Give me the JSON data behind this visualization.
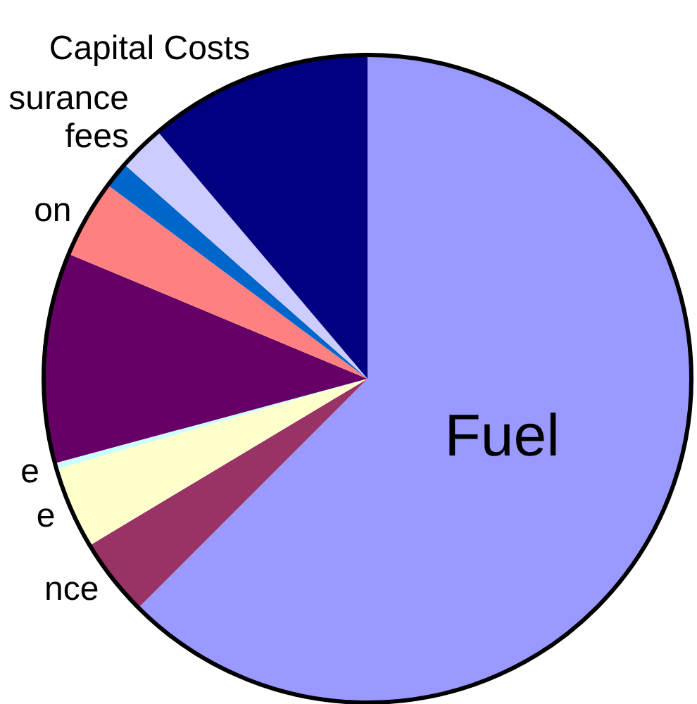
{
  "chart_data": {
    "type": "pie",
    "categories": [
      "Fuel",
      "nce",
      "e",
      "e",
      null,
      "on",
      null,
      "surance\nfees",
      "Capital Costs"
    ],
    "values": [
      62.5,
      3.9,
      4.1,
      0.3,
      10.5,
      3.9,
      1.3,
      2.3,
      11.2
    ],
    "colors": [
      "#9999ff",
      "#993366",
      "#ffffcc",
      "#ccffff",
      "#660066",
      "#ff8080",
      "#0066cc",
      "#ccccff",
      "#000080"
    ]
  }
}
